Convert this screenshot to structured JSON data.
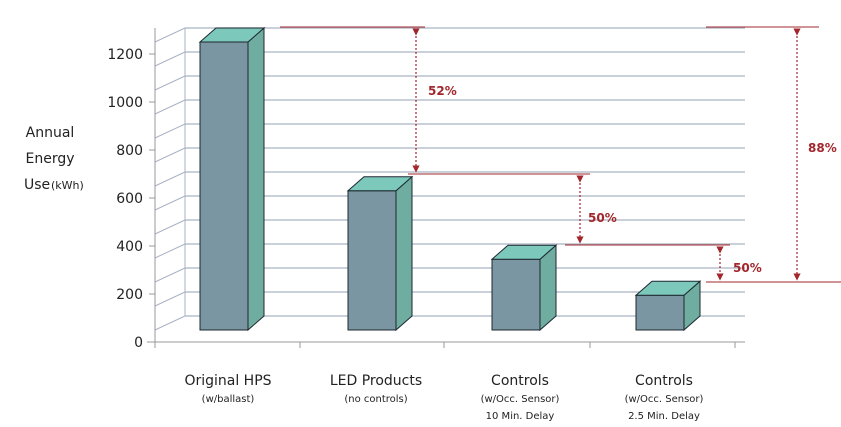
{
  "chart_data": {
    "type": "bar",
    "categories": [
      {
        "name": "Original HPS",
        "sub": [
          "(w/ballast)"
        ]
      },
      {
        "name": "LED Products",
        "sub": [
          "(no controls)"
        ]
      },
      {
        "name": "Controls",
        "sub": [
          "(w/Occ. Sensor)",
          "10 Min. Delay"
        ]
      },
      {
        "name": "Controls",
        "sub": [
          "(w/Occ. Sensor)",
          "2.5 Min. Delay"
        ]
      }
    ],
    "values": [
      1200,
      580,
      295,
      145
    ],
    "ylabel": [
      "Annual",
      "Energy",
      "Use"
    ],
    "ylabel_unit": "(kWh)",
    "yticks": [
      "0",
      "200",
      "400",
      "600",
      "800",
      "1000",
      "1200"
    ],
    "ylim": [
      0,
      1200
    ],
    "grid": true,
    "annotations": [
      {
        "label": "52%",
        "from_value": 1200,
        "to_value": 580
      },
      {
        "label": "50%",
        "from_value": 580,
        "to_value": 295
      },
      {
        "label": "50%",
        "from_value": 295,
        "to_value": 145
      },
      {
        "label": "88%",
        "from_value": 1200,
        "to_value": 145
      }
    ],
    "colors": {
      "bar_front": "#7a96a2",
      "bar_side": "#6fada0",
      "bar_top": "#7cc8bb",
      "grid": "#aab3c3",
      "annotation": "#a2272d"
    }
  }
}
